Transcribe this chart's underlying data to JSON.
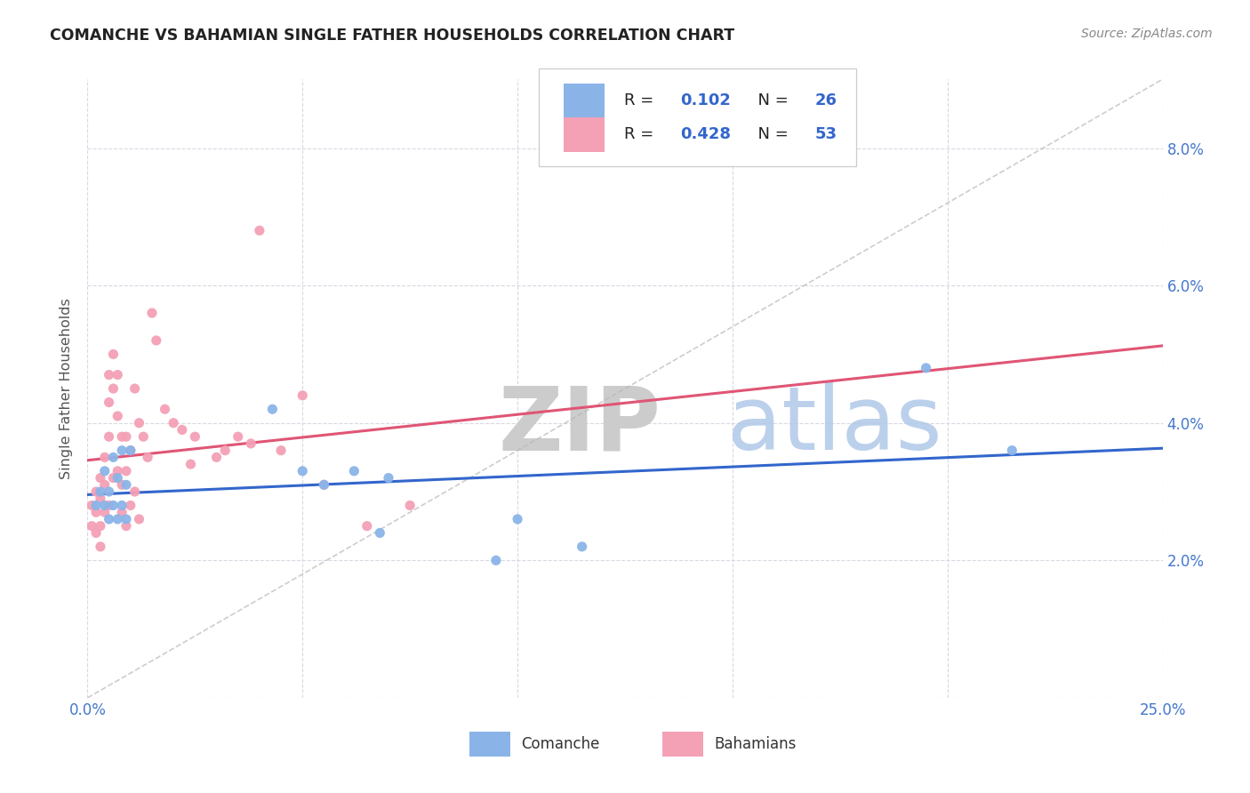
{
  "title": "COMANCHE VS BAHAMIAN SINGLE FATHER HOUSEHOLDS CORRELATION CHART",
  "source": "Source: ZipAtlas.com",
  "ylabel": "Single Father Households",
  "xlim": [
    0.0,
    0.25
  ],
  "ylim": [
    0.0,
    0.09
  ],
  "xtick_positions": [
    0.0,
    0.05,
    0.1,
    0.15,
    0.2,
    0.25
  ],
  "xtick_labels": [
    "0.0%",
    "",
    "",
    "",
    "",
    "25.0%"
  ],
  "ytick_positions": [
    0.0,
    0.02,
    0.04,
    0.06,
    0.08
  ],
  "ytick_labels": [
    "",
    "2.0%",
    "4.0%",
    "6.0%",
    "8.0%"
  ],
  "comanche_color": "#8ab4e8",
  "bahamian_color": "#f4a0b5",
  "comanche_line_color": "#3366cc",
  "bahamian_line_color": "#e05575",
  "diag_line_color": "#b8b8b8",
  "watermark_zip_color": "#d0d0d0",
  "watermark_atlas_color": "#b8cce8",
  "grid_color": "#d8d8e4",
  "tick_color": "#4477cc",
  "comanche_x": [
    0.002,
    0.003,
    0.004,
    0.004,
    0.005,
    0.005,
    0.006,
    0.006,
    0.007,
    0.007,
    0.008,
    0.008,
    0.009,
    0.009,
    0.01,
    0.043,
    0.05,
    0.055,
    0.062,
    0.068,
    0.07,
    0.095,
    0.1,
    0.115,
    0.195,
    0.215
  ],
  "comanche_y": [
    0.028,
    0.03,
    0.033,
    0.028,
    0.026,
    0.03,
    0.035,
    0.028,
    0.032,
    0.026,
    0.036,
    0.028,
    0.031,
    0.026,
    0.036,
    0.042,
    0.033,
    0.031,
    0.033,
    0.024,
    0.032,
    0.02,
    0.026,
    0.022,
    0.048,
    0.036
  ],
  "bahamian_x": [
    0.001,
    0.001,
    0.002,
    0.002,
    0.002,
    0.003,
    0.003,
    0.003,
    0.003,
    0.004,
    0.004,
    0.004,
    0.005,
    0.005,
    0.005,
    0.005,
    0.006,
    0.006,
    0.006,
    0.007,
    0.007,
    0.007,
    0.008,
    0.008,
    0.008,
    0.009,
    0.009,
    0.009,
    0.01,
    0.01,
    0.011,
    0.011,
    0.012,
    0.012,
    0.013,
    0.014,
    0.015,
    0.016,
    0.018,
    0.02,
    0.022,
    0.024,
    0.025,
    0.03,
    0.032,
    0.035,
    0.038,
    0.04,
    0.045,
    0.05,
    0.055,
    0.065,
    0.075
  ],
  "bahamian_y": [
    0.028,
    0.025,
    0.03,
    0.027,
    0.024,
    0.032,
    0.029,
    0.025,
    0.022,
    0.035,
    0.031,
    0.027,
    0.047,
    0.043,
    0.038,
    0.028,
    0.05,
    0.045,
    0.032,
    0.047,
    0.041,
    0.033,
    0.038,
    0.031,
    0.027,
    0.038,
    0.033,
    0.025,
    0.036,
    0.028,
    0.045,
    0.03,
    0.04,
    0.026,
    0.038,
    0.035,
    0.056,
    0.052,
    0.042,
    0.04,
    0.039,
    0.034,
    0.038,
    0.035,
    0.036,
    0.038,
    0.037,
    0.068,
    0.036,
    0.044,
    0.031,
    0.025,
    0.028
  ]
}
